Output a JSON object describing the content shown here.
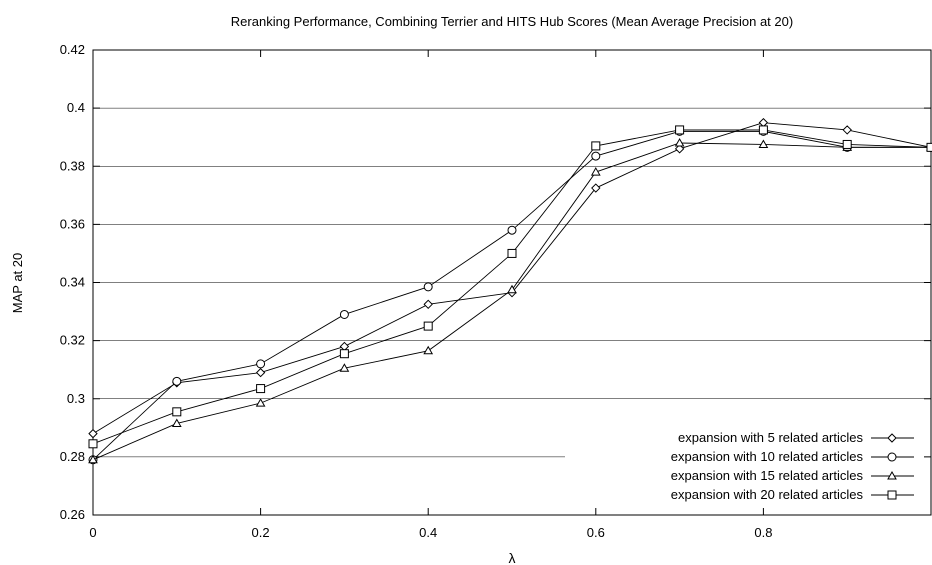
{
  "chart_data": {
    "type": "line",
    "title": "Reranking Performance, Combining Terrier and HITS Hub Scores (Mean Average Precision at 20)",
    "xlabel": "λ",
    "ylabel": "MAP at 20",
    "xlim": [
      0,
      1
    ],
    "ylim": [
      0.26,
      0.42
    ],
    "x_ticks": [
      "0",
      "0.2",
      "0.4",
      "0.6",
      "0.8"
    ],
    "y_ticks": [
      "0.26",
      "0.28",
      "0.3",
      "0.32",
      "0.34",
      "0.36",
      "0.38",
      "0.4",
      "0.42"
    ],
    "grid": "horizontal",
    "legend_position": "bottom-right",
    "x": [
      0,
      0.1,
      0.2,
      0.3,
      0.4,
      0.5,
      0.6,
      0.7,
      0.8,
      0.9,
      1.0
    ],
    "series": [
      {
        "name": "expansion with 5 related articles",
        "marker": "diamond",
        "values": [
          0.288,
          0.3055,
          0.309,
          0.318,
          0.3325,
          0.3365,
          0.3725,
          0.386,
          0.395,
          0.3925,
          0.3865
        ]
      },
      {
        "name": "expansion with 10 related articles",
        "marker": "circle",
        "values": [
          0.279,
          0.306,
          0.312,
          0.329,
          0.3385,
          0.358,
          0.3835,
          0.392,
          0.392,
          0.3865,
          0.3865
        ]
      },
      {
        "name": "expansion with 15 related articles",
        "marker": "triangle",
        "values": [
          0.279,
          0.2915,
          0.2985,
          0.3105,
          0.3165,
          0.3375,
          0.378,
          0.388,
          0.3875,
          0.3865,
          0.3865
        ]
      },
      {
        "name": "expansion with 20 related articles",
        "marker": "square",
        "values": [
          0.2845,
          0.2955,
          0.3035,
          0.3155,
          0.325,
          0.35,
          0.387,
          0.3925,
          0.3925,
          0.3875,
          0.3865
        ]
      }
    ]
  }
}
